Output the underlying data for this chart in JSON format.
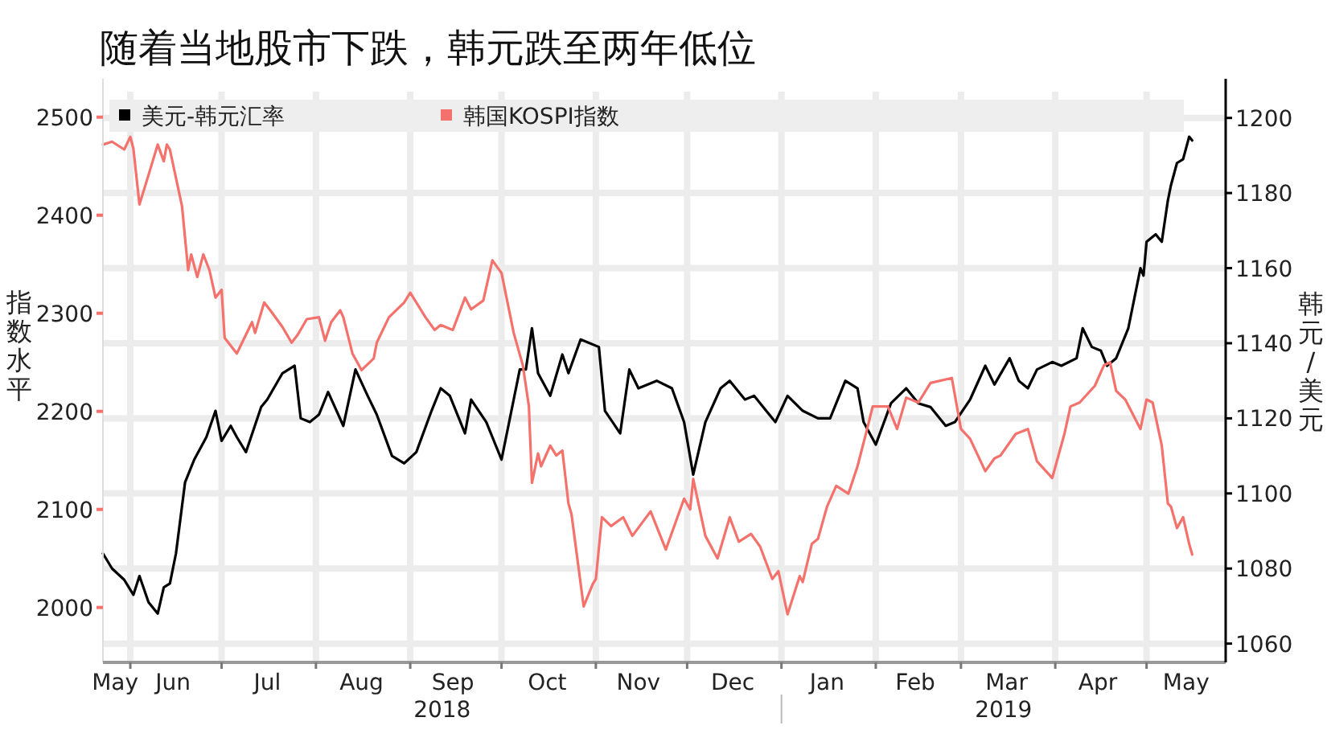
{
  "chart_data": {
    "type": "line",
    "title": "随着当地股市下跌，韩元跌至两年低位",
    "ylabel": "指数水平",
    "y2label": "韩元/美元",
    "xlim": [
      "2018-05-23",
      "2019-05-27"
    ],
    "xticks": [
      {
        "value": "2018-06-01",
        "label": null
      },
      {
        "value": "2018-07-01",
        "label": null
      },
      {
        "value": "2018-08-01",
        "label": null
      },
      {
        "value": "2018-09-01",
        "label": null
      },
      {
        "value": "2018-10-01",
        "label": null
      },
      {
        "value": "2018-11-01",
        "label": null
      },
      {
        "value": "2018-12-01",
        "label": null
      },
      {
        "value": "2019-01-01",
        "label": null
      },
      {
        "value": "2019-02-01",
        "label": null
      },
      {
        "value": "2019-03-01",
        "label": null
      },
      {
        "value": "2019-04-01",
        "label": null
      },
      {
        "value": "2019-05-01",
        "label": null
      },
      {
        "value": "2018-05-27",
        "label": "May"
      },
      {
        "value": "2018-06-15",
        "label": "Jun"
      },
      {
        "value": "2018-07-16",
        "label": "Jul"
      },
      {
        "value": "2018-08-16",
        "label": "Aug"
      },
      {
        "value": "2018-09-15",
        "label": "Sep"
      },
      {
        "value": "2018-10-16",
        "label": "Oct"
      },
      {
        "value": "2018-11-15",
        "label": "Nov"
      },
      {
        "value": "2018-12-16",
        "label": "Dec"
      },
      {
        "value": "2019-01-16",
        "label": "Jan"
      },
      {
        "value": "2019-02-14",
        "label": "Feb"
      },
      {
        "value": "2019-03-16",
        "label": "Mar"
      },
      {
        "value": "2019-04-15",
        "label": "Apr"
      },
      {
        "value": "2019-05-14",
        "label": "May"
      }
    ],
    "ylim": [
      1944,
      2526
    ],
    "yticks": [
      2000,
      2100,
      2200,
      2300,
      2400,
      2500
    ],
    "y2lim": [
      1055,
      1207
    ],
    "y2ticks": [
      1060,
      1080,
      1100,
      1120,
      1140,
      1160,
      1180,
      1200
    ],
    "grid": true,
    "legend": "top",
    "annotations": [
      "2018",
      "2019"
    ],
    "series": [
      {
        "name": "美元-韩元汇率",
        "color": "#000000",
        "axis": "y2",
        "x": [
          "2018-05-23",
          "2018-05-26",
          "2018-05-30",
          "2018-06-02",
          "2018-06-04",
          "2018-06-07",
          "2018-06-10",
          "2018-06-12",
          "2018-06-14",
          "2018-06-16",
          "2018-06-19",
          "2018-06-21",
          "2018-06-22",
          "2018-06-26",
          "2018-06-29",
          "2018-07-01",
          "2018-07-04",
          "2018-07-06",
          "2018-07-09",
          "2018-07-14",
          "2018-07-16",
          "2018-07-21",
          "2018-07-25",
          "2018-07-27",
          "2018-07-30",
          "2018-08-02",
          "2018-08-05",
          "2018-08-10",
          "2018-08-14",
          "2018-08-18",
          "2018-08-21",
          "2018-08-26",
          "2018-08-30",
          "2018-09-03",
          "2018-09-08",
          "2018-09-11",
          "2018-09-14",
          "2018-09-19",
          "2018-09-21",
          "2018-09-26",
          "2018-10-01",
          "2018-10-05",
          "2018-10-07",
          "2018-10-09",
          "2018-10-11",
          "2018-10-13",
          "2018-10-17",
          "2018-10-21",
          "2018-10-23",
          "2018-10-27",
          "2018-11-02",
          "2018-11-04",
          "2018-11-09",
          "2018-11-12",
          "2018-11-15",
          "2018-11-21",
          "2018-11-26",
          "2018-11-30",
          "2018-12-03",
          "2018-12-07",
          "2018-12-12",
          "2018-12-15",
          "2018-12-20",
          "2018-12-23",
          "2018-12-30",
          "2019-01-03",
          "2019-01-08",
          "2019-01-13",
          "2019-01-17",
          "2019-01-22",
          "2019-01-26",
          "2019-01-28",
          "2019-02-01",
          "2019-02-06",
          "2019-02-11",
          "2019-02-15",
          "2019-02-19",
          "2019-02-24",
          "2019-02-27",
          "2019-03-04",
          "2019-03-09",
          "2019-03-12",
          "2019-03-17",
          "2019-03-20",
          "2019-03-23",
          "2019-03-26",
          "2019-03-31",
          "2019-04-03",
          "2019-04-08",
          "2019-04-10",
          "2019-04-13",
          "2019-04-16",
          "2019-04-18",
          "2019-04-21",
          "2019-04-25",
          "2019-04-29",
          "2019-04-30",
          "2019-05-01",
          "2019-05-04",
          "2019-05-06",
          "2019-05-08",
          "2019-05-09",
          "2019-05-11",
          "2019-05-13",
          "2019-05-15",
          "2019-05-16"
        ],
        "values": [
          1084,
          1080,
          1077,
          1073,
          1078,
          1071,
          1068,
          1075,
          1076,
          1084,
          1103,
          1107,
          1109,
          1115,
          1122,
          1114,
          1118,
          1115,
          1111,
          1123,
          1125,
          1132,
          1134,
          1120,
          1119,
          1121,
          1127,
          1118,
          1133,
          1126,
          1121,
          1110,
          1108,
          1111,
          1122,
          1128,
          1126,
          1116,
          1125,
          1119,
          1109,
          1125,
          1133,
          1133,
          1144,
          1132,
          1126,
          1137,
          1132,
          1141,
          1139,
          1122,
          1116,
          1133,
          1128,
          1130,
          1128,
          1119,
          1105,
          1119,
          1128,
          1130,
          1125,
          1126,
          1119,
          1126,
          1122,
          1120,
          1120,
          1130,
          1128,
          1119,
          1113,
          1124,
          1128,
          1124,
          1123,
          1118,
          1119,
          1125,
          1134,
          1129,
          1136,
          1130,
          1128,
          1133,
          1135,
          1134,
          1136,
          1144,
          1139,
          1138,
          1134,
          1136,
          1144,
          1160,
          1158,
          1167,
          1169,
          1167,
          1178,
          1182,
          1188,
          1189,
          1195,
          1194
        ]
      },
      {
        "name": "韩国KOSPI指数",
        "color": "#f4716c",
        "x": [
          "2018-05-23",
          "2018-05-26",
          "2018-05-30",
          "2018-06-01",
          "2018-06-02",
          "2018-06-04",
          "2018-06-06",
          "2018-06-10",
          "2018-06-12",
          "2018-06-13",
          "2018-06-14",
          "2018-06-18",
          "2018-06-20",
          "2018-06-21",
          "2018-06-23",
          "2018-06-25",
          "2018-06-27",
          "2018-06-29",
          "2018-07-01",
          "2018-07-02",
          "2018-07-06",
          "2018-07-11",
          "2018-07-12",
          "2018-07-15",
          "2018-07-17",
          "2018-07-21",
          "2018-07-24",
          "2018-07-26",
          "2018-07-29",
          "2018-08-02",
          "2018-08-04",
          "2018-08-06",
          "2018-08-09",
          "2018-08-10",
          "2018-08-13",
          "2018-08-16",
          "2018-08-20",
          "2018-08-21",
          "2018-08-25",
          "2018-08-30",
          "2018-09-01",
          "2018-09-03",
          "2018-09-06",
          "2018-09-09",
          "2018-09-11",
          "2018-09-15",
          "2018-09-19",
          "2018-09-21",
          "2018-09-25",
          "2018-09-28",
          "2018-10-01",
          "2018-10-05",
          "2018-10-08",
          "2018-10-10",
          "2018-10-11",
          "2018-10-13",
          "2018-10-14",
          "2018-10-17",
          "2018-10-19",
          "2018-10-21",
          "2018-10-23",
          "2018-10-24",
          "2018-10-28",
          "2018-10-31",
          "2018-11-01",
          "2018-11-03",
          "2018-11-06",
          "2018-11-10",
          "2018-11-13",
          "2018-11-19",
          "2018-11-24",
          "2018-11-30",
          "2018-12-02",
          "2018-12-03",
          "2018-12-07",
          "2018-12-11",
          "2018-12-15",
          "2018-12-18",
          "2018-12-22",
          "2018-12-25",
          "2018-12-29",
          "2018-12-31",
          "2019-01-03",
          "2019-01-07",
          "2019-01-08",
          "2019-01-11",
          "2019-01-13",
          "2019-01-16",
          "2019-01-19",
          "2019-01-23",
          "2019-01-26",
          "2019-01-29",
          "2019-01-31",
          "2019-02-05",
          "2019-02-08",
          "2019-02-11",
          "2019-02-15",
          "2019-02-19",
          "2019-02-26",
          "2019-03-01",
          "2019-03-04",
          "2019-03-09",
          "2019-03-12",
          "2019-03-14",
          "2019-03-19",
          "2019-03-23",
          "2019-03-26",
          "2019-03-31",
          "2019-04-04",
          "2019-04-06",
          "2019-04-09",
          "2019-04-14",
          "2019-04-17",
          "2019-04-19",
          "2019-04-21",
          "2019-04-24",
          "2019-04-29",
          "2019-05-01",
          "2019-05-03",
          "2019-05-06",
          "2019-05-08",
          "2019-05-09",
          "2019-05-11",
          "2019-05-13",
          "2019-05-15",
          "2019-05-16"
        ],
        "values": [
          2472,
          2475,
          2467,
          2480,
          2468,
          2411,
          2431,
          2472,
          2455,
          2472,
          2467,
          2409,
          2344,
          2360,
          2337,
          2360,
          2344,
          2316,
          2324,
          2275,
          2259,
          2291,
          2280,
          2311,
          2303,
          2286,
          2270,
          2278,
          2294,
          2296,
          2272,
          2291,
          2303,
          2296,
          2259,
          2242,
          2254,
          2270,
          2296,
          2311,
          2321,
          2311,
          2296,
          2283,
          2288,
          2283,
          2316,
          2304,
          2313,
          2354,
          2341,
          2280,
          2247,
          2205,
          2127,
          2157,
          2144,
          2165,
          2155,
          2160,
          2106,
          2095,
          2001,
          2024,
          2029,
          2092,
          2083,
          2092,
          2073,
          2098,
          2059,
          2111,
          2100,
          2131,
          2073,
          2050,
          2092,
          2067,
          2075,
          2062,
          2029,
          2037,
          1993,
          2032,
          2026,
          2065,
          2070,
          2103,
          2124,
          2116,
          2144,
          2180,
          2205,
          2205,
          2182,
          2214,
          2209,
          2229,
          2234,
          2182,
          2172,
          2139,
          2152,
          2155,
          2177,
          2182,
          2149,
          2132,
          2177,
          2205,
          2209,
          2226,
          2247,
          2250,
          2221,
          2212,
          2182,
          2212,
          2209,
          2165,
          2106,
          2103,
          2081,
          2092,
          2065,
          2054
        ]
      }
    ]
  }
}
